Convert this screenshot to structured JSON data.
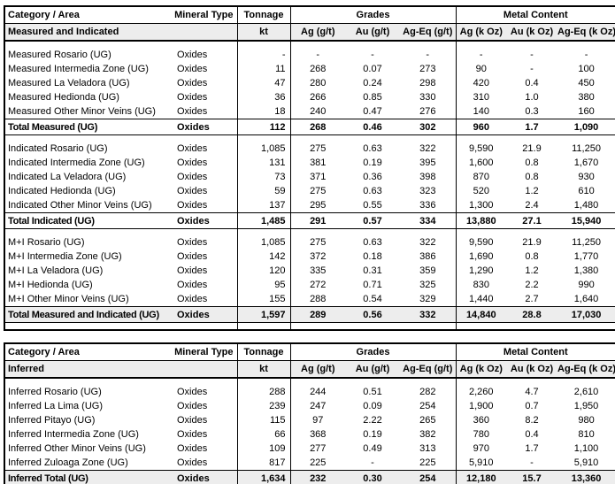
{
  "colors": {
    "border": "#000000",
    "shaded_row": "#ededed",
    "text": "#000000",
    "background": "#ffffff"
  },
  "tables": [
    {
      "name": "measured-indicated-resource-table",
      "header": {
        "category": "Category / Area",
        "mineral_type": "Mineral Type",
        "tonnage": "Tonnage",
        "grades": "Grades",
        "metal": "Metal Content",
        "row2_label": "Measured and Indicated",
        "units": [
          "kt",
          "Ag (g/t)",
          "Au (g/t)",
          "Ag-Eq (g/t)",
          "Ag (k Oz)",
          "Au (k Oz)",
          "Ag-Eq (k Oz)"
        ]
      },
      "sections": [
        {
          "rows": [
            {
              "area": "Measured Rosario (UG)",
              "mineral": "Oxides",
              "values": [
                "-",
                "-",
                "-",
                "-",
                "-",
                "-",
                "-"
              ]
            },
            {
              "area": "Measured Intermedia Zone (UG)",
              "mineral": "Oxides",
              "values": [
                "11",
                "268",
                "0.07",
                "273",
                "90",
                "-",
                "100"
              ]
            },
            {
              "area": "Measured La Veladora (UG)",
              "mineral": "Oxides",
              "values": [
                "47",
                "280",
                "0.24",
                "298",
                "420",
                "0.4",
                "450"
              ]
            },
            {
              "area": "Measured Hedionda (UG)",
              "mineral": "Oxides",
              "values": [
                "36",
                "266",
                "0.85",
                "330",
                "310",
                "1.0",
                "380"
              ]
            },
            {
              "area": "Measured Other Minor Veins (UG)",
              "mineral": "Oxides",
              "values": [
                "18",
                "240",
                "0.47",
                "276",
                "140",
                "0.3",
                "160"
              ]
            }
          ],
          "total": {
            "area": "Total Measured (UG)",
            "mineral": "Oxides",
            "values": [
              "112",
              "268",
              "0.46",
              "302",
              "960",
              "1.7",
              "1,090"
            ],
            "shaded": false
          }
        },
        {
          "rows": [
            {
              "area": "Indicated Rosario (UG)",
              "mineral": "Oxides",
              "values": [
                "1,085",
                "275",
                "0.63",
                "322",
                "9,590",
                "21.9",
                "11,250"
              ]
            },
            {
              "area": "Indicated Intermedia Zone (UG)",
              "mineral": "Oxides",
              "values": [
                "131",
                "381",
                "0.19",
                "395",
                "1,600",
                "0.8",
                "1,670"
              ]
            },
            {
              "area": "Indicated La Veladora (UG)",
              "mineral": "Oxides",
              "values": [
                "73",
                "371",
                "0.36",
                "398",
                "870",
                "0.8",
                "930"
              ]
            },
            {
              "area": "Indicated Hedionda (UG)",
              "mineral": "Oxides",
              "values": [
                "59",
                "275",
                "0.63",
                "323",
                "520",
                "1.2",
                "610"
              ]
            },
            {
              "area": "Indicated Other Minor Veins (UG)",
              "mineral": "Oxides",
              "values": [
                "137",
                "295",
                "0.55",
                "336",
                "1,300",
                "2.4",
                "1,480"
              ]
            }
          ],
          "total": {
            "area": "Total Indicated (UG)",
            "mineral": "Oxides",
            "values": [
              "1,485",
              "291",
              "0.57",
              "334",
              "13,880",
              "27.1",
              "15,940"
            ],
            "shaded": false
          }
        },
        {
          "rows": [
            {
              "area": "M+I Rosario (UG)",
              "mineral": "Oxides",
              "values": [
                "1,085",
                "275",
                "0.63",
                "322",
                "9,590",
                "21.9",
                "11,250"
              ]
            },
            {
              "area": "M+I Intermedia Zone (UG)",
              "mineral": "Oxides",
              "values": [
                "142",
                "372",
                "0.18",
                "386",
                "1,690",
                "0.8",
                "1,770"
              ]
            },
            {
              "area": "M+I La Veladora (UG)",
              "mineral": "Oxides",
              "values": [
                "120",
                "335",
                "0.31",
                "359",
                "1,290",
                "1.2",
                "1,380"
              ]
            },
            {
              "area": "M+I Hedionda (UG)",
              "mineral": "Oxides",
              "values": [
                "95",
                "272",
                "0.71",
                "325",
                "830",
                "2.2",
                "990"
              ]
            },
            {
              "area": "M+I Other Minor Veins (UG)",
              "mineral": "Oxides",
              "values": [
                "155",
                "288",
                "0.54",
                "329",
                "1,440",
                "2.7",
                "1,640"
              ]
            }
          ],
          "total": {
            "area": "Total Measured and Indicated (UG)",
            "mineral": "Oxides",
            "values": [
              "1,597",
              "289",
              "0.56",
              "332",
              "14,840",
              "28.8",
              "17,030"
            ],
            "shaded": true
          }
        }
      ]
    },
    {
      "name": "inferred-resource-table",
      "header": {
        "category": "Category / Area",
        "mineral_type": "Mineral Type",
        "tonnage": "Tonnage",
        "grades": "Grades",
        "metal": "Metal Content",
        "row2_label": "Inferred",
        "units": [
          "kt",
          "Ag (g/t)",
          "Au (g/t)",
          "Ag-Eq (g/t)",
          "Ag (k Oz)",
          "Au (k Oz)",
          "Ag-Eq (k Oz)"
        ]
      },
      "sections": [
        {
          "rows": [
            {
              "area": "Inferred Rosario (UG)",
              "mineral": "Oxides",
              "values": [
                "288",
                "244",
                "0.51",
                "282",
                "2,260",
                "4.7",
                "2,610"
              ]
            },
            {
              "area": "Inferred La Lima (UG)",
              "mineral": "Oxides",
              "values": [
                "239",
                "247",
                "0.09",
                "254",
                "1,900",
                "0.7",
                "1,950"
              ]
            },
            {
              "area": "Inferred Pitayo (UG)",
              "mineral": "Oxides",
              "values": [
                "115",
                "97",
                "2.22",
                "265",
                "360",
                "8.2",
                "980"
              ]
            },
            {
              "area": "Inferred Intermedia Zone (UG)",
              "mineral": "Oxides",
              "values": [
                "66",
                "368",
                "0.19",
                "382",
                "780",
                "0.4",
                "810"
              ]
            },
            {
              "area": "Inferred Other Minor Veins (UG)",
              "mineral": "Oxides",
              "values": [
                "109",
                "277",
                "0.49",
                "313",
                "970",
                "1.7",
                "1,100"
              ]
            },
            {
              "area": "Inferred Zuloaga Zone (UG)",
              "mineral": "Oxides",
              "values": [
                "817",
                "225",
                "-",
                "225",
                "5,910",
                "-",
                "5,910"
              ]
            }
          ],
          "total": {
            "area": "Inferred Total (UG)",
            "mineral": "Oxides",
            "values": [
              "1,634",
              "232",
              "0.30",
              "254",
              "12,180",
              "15.7",
              "13,360"
            ],
            "shaded": true
          }
        }
      ]
    }
  ]
}
